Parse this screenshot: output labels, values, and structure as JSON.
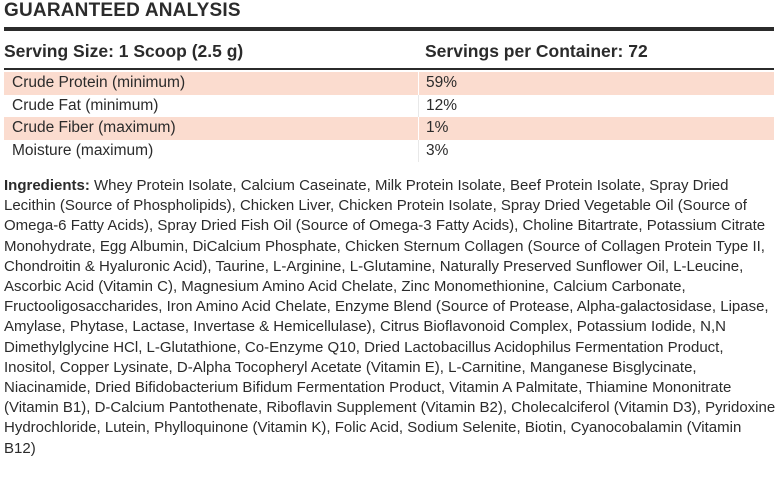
{
  "title": "GUARANTEED ANALYSIS",
  "serving": {
    "size_label": "Serving Size: 1 Scoop (2.5 g)",
    "servings_label": "Servings per Container: 72"
  },
  "analysis": [
    {
      "name": "Crude Protein (minimum)",
      "value": "59%"
    },
    {
      "name": "Crude Fat (minimum)",
      "value": "12%"
    },
    {
      "name": "Crude Fiber (maximum)",
      "value": "1%"
    },
    {
      "name": "Moisture (maximum)",
      "value": "3%"
    }
  ],
  "ingredients": {
    "label": "Ingredients:",
    "text": " Whey Protein Isolate, Calcium Caseinate, Milk Protein Isolate, Beef Protein Isolate, Spray Dried Lecithin (Source of Phospholipids), Chicken Liver, Chicken Protein Isolate, Spray Dried Vegetable Oil (Source of Omega-6 Fatty Acids), Spray Dried Fish Oil (Source of Omega-3 Fatty Acids), Choline Bitartrate, Potassium Citrate Monohydrate, Egg Albumin, DiCalcium Phosphate, Chicken Sternum Collagen (Source of Collagen Protein Type II, Chondroitin & Hyaluronic Acid), Taurine, L-Arginine, L-Glutamine, Naturally Preserved Sunflower Oil, L-Leucine, Ascorbic Acid (Vitamin C), Magnesium Amino Acid Chelate, Zinc Monomethionine, Calcium Carbonate, Fructooligosaccharides, Iron Amino Acid Chelate, Enzyme Blend (Source of Protease, Alpha-galactosidase, Lipase, Amylase, Phytase, Lactase, Invertase & Hemicellulase), Citrus Bioflavonoid Complex, Potassium Iodide, N,N Dimethylglycine HCl, L-Glutathione, Co-Enzyme Q10, Dried Lactobacillus Acidophilus Fermentation Product, Inositol, Copper Lysinate, D-Alpha Tocopheryl Acetate (Vitamin E), L-Carnitine, Manganese Bisglycinate, Niacinamide, Dried Bifidobacterium Bifidum Fermentation Product, Vitamin A Palmitate, Thiamine Mononitrate (Vitamin B1), D-Calcium Pantothenate, Riboflavin Supplement (Vitamin B2), Cholecalciferol (Vitamin D3), Pyridoxine Hydrochloride, Lutein, Phylloquinone (Vitamin K), Folic Acid, Sodium Selenite, Biotin, Cyanocobalamin (Vitamin B12)"
  },
  "colors": {
    "row_shade": "#fbdccf",
    "text": "#2b2b2b"
  }
}
